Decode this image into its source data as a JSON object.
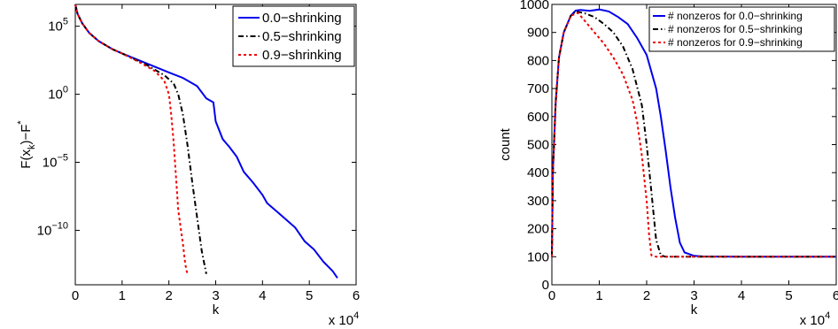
{
  "chart_data": [
    {
      "type": "line",
      "xlabel": "k",
      "ylabel": "F(x_k)−F*",
      "y_scale": "log",
      "x_multiplier": "x 10^4",
      "xlim": [
        0,
        6
      ],
      "ylim_exp": [
        -14,
        6.6
      ],
      "xticks": [
        "0",
        "1",
        "2",
        "3",
        "4",
        "5",
        "6"
      ],
      "yticks": [
        {
          "exp": 5,
          "base": "10",
          "sup": "5"
        },
        {
          "exp": 0,
          "base": "10",
          "sup": "0"
        },
        {
          "exp": -5,
          "base": "10",
          "sup": "−5"
        },
        {
          "exp": -10,
          "base": "10",
          "sup": "−10"
        }
      ],
      "legend_position": "top-right",
      "series": [
        {
          "name": "0.0−shrinking",
          "color": "#0000ee",
          "dash": "solid",
          "x": [
            0,
            0.05,
            0.15,
            0.3,
            0.5,
            0.8,
            1.0,
            1.5,
            2.0,
            2.3,
            2.6,
            2.8,
            2.95,
            3.0,
            3.15,
            3.3,
            3.45,
            3.6,
            3.8,
            4.0,
            4.1,
            4.3,
            4.5,
            4.7,
            4.9,
            5.1,
            5.3,
            5.5,
            5.6
          ],
          "y": [
            6.6,
            5.9,
            5.2,
            4.5,
            3.9,
            3.3,
            3.0,
            2.3,
            1.6,
            1.2,
            0.6,
            -0.3,
            -0.6,
            -2.0,
            -3.3,
            -3.9,
            -4.6,
            -5.7,
            -6.5,
            -7.4,
            -8.0,
            -8.6,
            -9.2,
            -9.8,
            -10.8,
            -11.4,
            -12.3,
            -13.0,
            -13.5
          ]
        },
        {
          "name": "0.5−shrinking",
          "color": "#000000",
          "dash": "dashdot",
          "x": [
            0,
            0.05,
            0.15,
            0.3,
            0.5,
            0.8,
            1.0,
            1.5,
            1.9,
            2.1,
            2.2,
            2.3,
            2.4,
            2.5,
            2.6,
            2.7,
            2.8
          ],
          "y": [
            6.6,
            5.9,
            5.2,
            4.5,
            3.9,
            3.3,
            3.0,
            2.2,
            1.4,
            0.8,
            0.0,
            -1.5,
            -3.8,
            -6.5,
            -9.0,
            -11.5,
            -13.2
          ]
        },
        {
          "name": "0.9−shrinking",
          "color": "#ee0000",
          "dash": "dotted",
          "x": [
            0,
            0.05,
            0.15,
            0.3,
            0.5,
            0.8,
            1.0,
            1.4,
            1.7,
            1.9,
            2.0,
            2.05,
            2.1,
            2.15,
            2.2,
            2.3,
            2.35,
            2.4
          ],
          "y": [
            6.6,
            5.9,
            5.2,
            4.5,
            3.9,
            3.3,
            3.0,
            2.3,
            1.7,
            1.0,
            0.0,
            -1.5,
            -3.5,
            -6.0,
            -8.5,
            -11.0,
            -12.5,
            -13.3
          ]
        }
      ]
    },
    {
      "type": "line",
      "xlabel": "k",
      "ylabel": "count",
      "x_multiplier": "x 10^4",
      "xlim": [
        0,
        6
      ],
      "ylim": [
        0,
        1000
      ],
      "xticks": [
        "0",
        "1",
        "2",
        "3",
        "4",
        "5",
        "6"
      ],
      "yticks": [
        "0",
        "100",
        "200",
        "300",
        "400",
        "500",
        "600",
        "700",
        "800",
        "900",
        "1000"
      ],
      "legend_position": "top-right",
      "series": [
        {
          "name": "# nonzeros for 0.0−shrinking",
          "color": "#0000ee",
          "dash": "solid",
          "x": [
            0,
            0.02,
            0.08,
            0.15,
            0.25,
            0.4,
            0.5,
            0.6,
            0.8,
            1.0,
            1.2,
            1.4,
            1.6,
            1.8,
            2.0,
            2.2,
            2.3,
            2.4,
            2.5,
            2.6,
            2.7,
            2.8,
            3.0,
            3.2,
            4.0,
            5.0,
            6.0
          ],
          "y": [
            100,
            400,
            650,
            810,
            900,
            960,
            978,
            980,
            977,
            982,
            975,
            955,
            930,
            880,
            820,
            700,
            600,
            480,
            350,
            240,
            150,
            115,
            103,
            101,
            100,
            100,
            100
          ]
        },
        {
          "name": "# nonzeros for 0.5−shrinking",
          "color": "#000000",
          "dash": "dashdot",
          "x": [
            0,
            0.02,
            0.08,
            0.15,
            0.25,
            0.4,
            0.5,
            0.7,
            0.9,
            1.1,
            1.3,
            1.5,
            1.7,
            1.9,
            2.0,
            2.1,
            2.2,
            2.3,
            2.4,
            3.0,
            6.0
          ],
          "y": [
            100,
            400,
            650,
            810,
            900,
            960,
            975,
            968,
            955,
            930,
            900,
            850,
            770,
            640,
            500,
            330,
            160,
            105,
            100,
            100,
            100
          ]
        },
        {
          "name": "# nonzeros for 0.9−shrinking",
          "color": "#ee0000",
          "dash": "dotted",
          "x": [
            0,
            0.02,
            0.08,
            0.15,
            0.25,
            0.4,
            0.55,
            0.7,
            0.9,
            1.1,
            1.3,
            1.5,
            1.7,
            1.8,
            1.9,
            2.0,
            2.05,
            2.1,
            2.2,
            3.0,
            6.0
          ],
          "y": [
            100,
            400,
            650,
            810,
            900,
            960,
            970,
            940,
            900,
            860,
            810,
            750,
            660,
            580,
            460,
            300,
            180,
            105,
            100,
            100,
            100
          ]
        }
      ]
    }
  ]
}
